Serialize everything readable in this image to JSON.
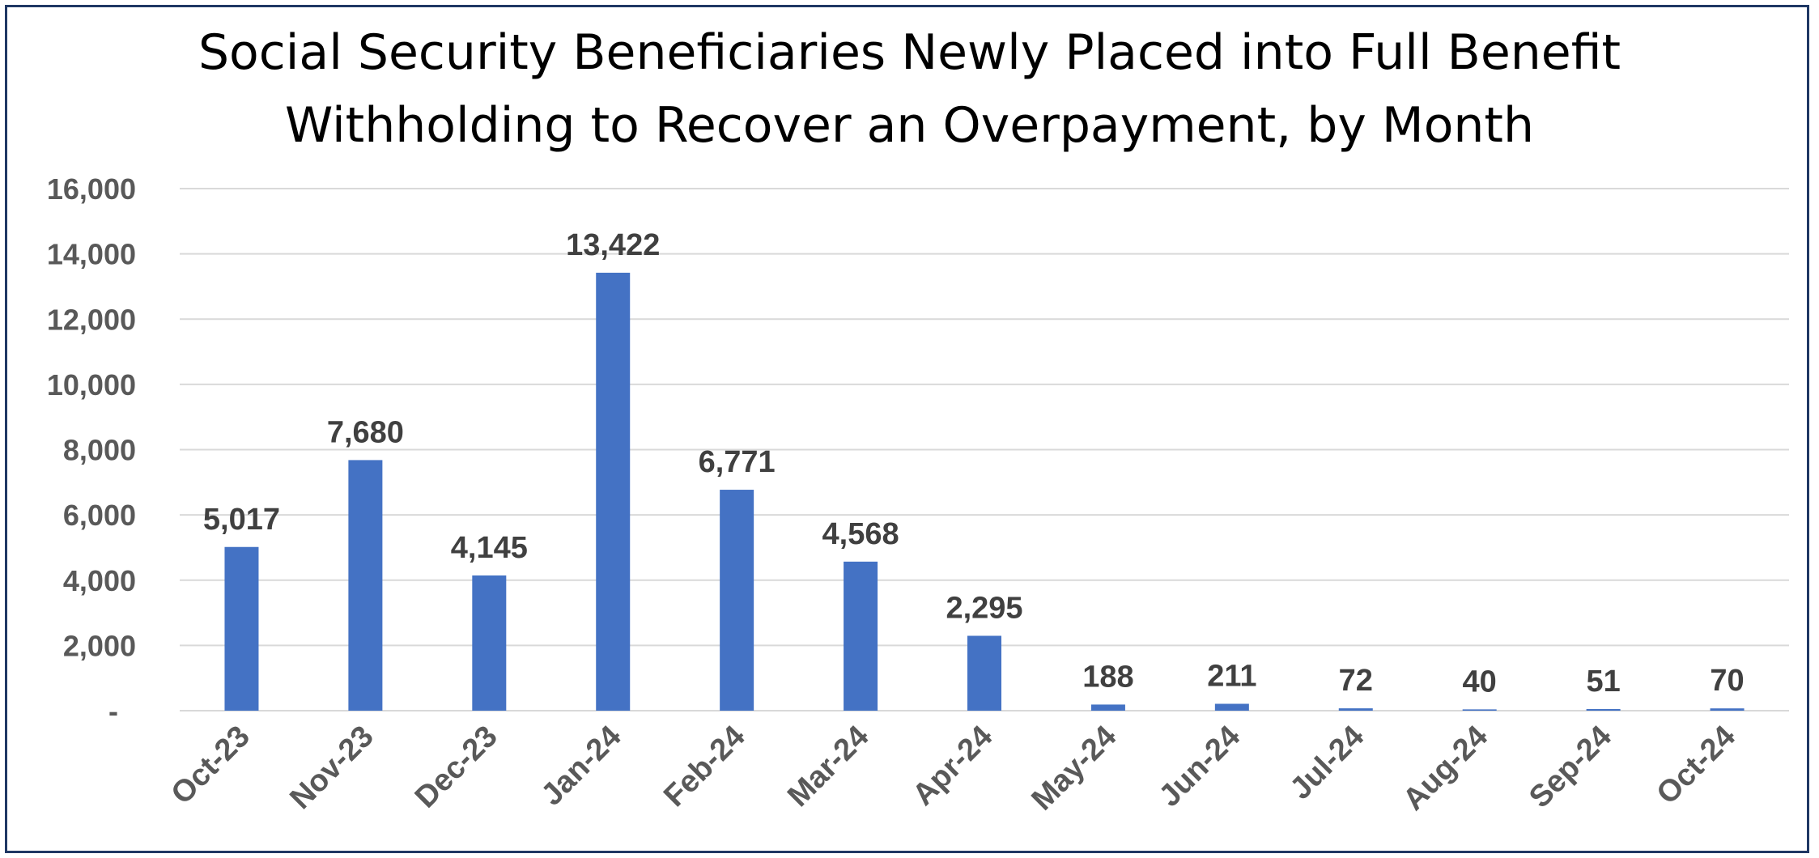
{
  "colors": {
    "bar": "#4472c4",
    "grid": "#d9d9d9",
    "axis_text": "#595959",
    "data_label": "#404040",
    "border": "#1f3864"
  },
  "chart_data": {
    "type": "bar",
    "title": "Social Security Beneficiaries Newly Placed into Full Benefit Withholding to Recover an Overpayment, by Month",
    "xlabel": "",
    "ylabel": "",
    "categories": [
      "Oct-23",
      "Nov-23",
      "Dec-23",
      "Jan-24",
      "Feb-24",
      "Mar-24",
      "Apr-24",
      "May-24",
      "Jun-24",
      "Jul-24",
      "Aug-24",
      "Sep-24",
      "Oct-24"
    ],
    "values": [
      5017,
      7680,
      4145,
      13422,
      6771,
      4568,
      2295,
      188,
      211,
      72,
      40,
      51,
      70
    ],
    "data_labels": [
      "5,017",
      "7,680",
      "4,145",
      "13,422",
      "6,771",
      "4,568",
      "2,295",
      "188",
      "211",
      "72",
      "40",
      "51",
      "70"
    ],
    "ylim": [
      0,
      16000
    ],
    "yticks": [
      0,
      2000,
      4000,
      6000,
      8000,
      10000,
      12000,
      14000,
      16000
    ],
    "ytick_labels": [
      "-",
      "2,000",
      "4,000",
      "6,000",
      "8,000",
      "10,000",
      "12,000",
      "14,000",
      "16,000"
    ],
    "grid": true,
    "legend": "none"
  }
}
